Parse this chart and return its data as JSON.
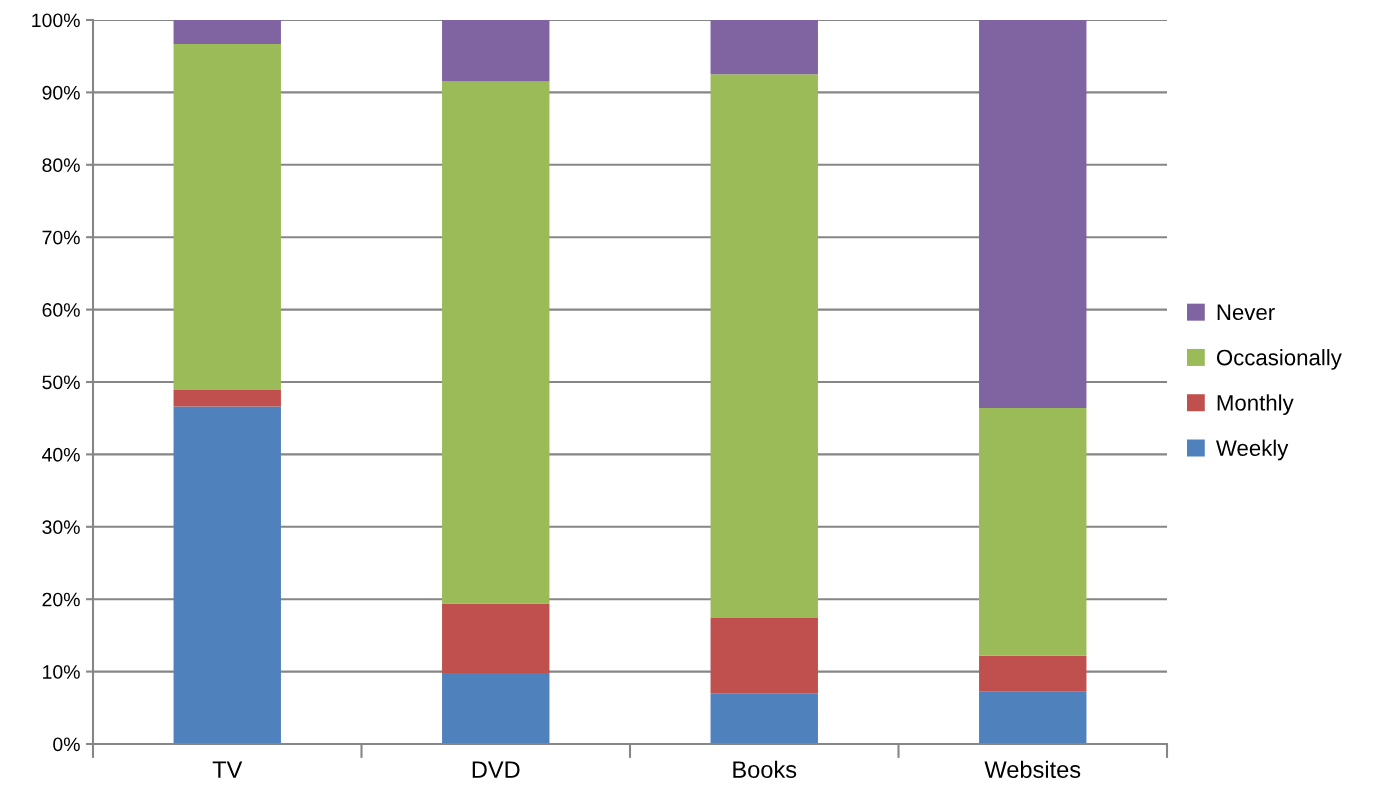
{
  "chart_data": {
    "type": "bar",
    "stacked": true,
    "categories": [
      "TV",
      "DVD",
      "Books",
      "Websites"
    ],
    "series": [
      {
        "name": "Weekly",
        "color": "#4f81bd",
        "values": [
          46.6,
          9.8,
          7.0,
          7.2
        ]
      },
      {
        "name": "Monthly",
        "color": "#c0504d",
        "values": [
          2.3,
          9.6,
          10.4,
          5.0
        ]
      },
      {
        "name": "Occasionally",
        "color": "#9bbb59",
        "values": [
          47.8,
          72.1,
          75.1,
          34.2
        ]
      },
      {
        "name": "Never",
        "color": "#8064a2",
        "values": [
          3.3,
          8.5,
          7.5,
          53.6
        ]
      }
    ],
    "ylim": [
      0,
      100
    ],
    "yticks": [
      {
        "value": 0,
        "label": "0%"
      },
      {
        "value": 10,
        "label": "10%"
      },
      {
        "value": 20,
        "label": "20%"
      },
      {
        "value": 30,
        "label": "30%"
      },
      {
        "value": 40,
        "label": "40%"
      },
      {
        "value": 50,
        "label": "50%"
      },
      {
        "value": 60,
        "label": "60%"
      },
      {
        "value": 70,
        "label": "70%"
      },
      {
        "value": 80,
        "label": "80%"
      },
      {
        "value": 90,
        "label": "90%"
      },
      {
        "value": 100,
        "label": "100%"
      }
    ],
    "grid": "y",
    "legend": "right"
  }
}
